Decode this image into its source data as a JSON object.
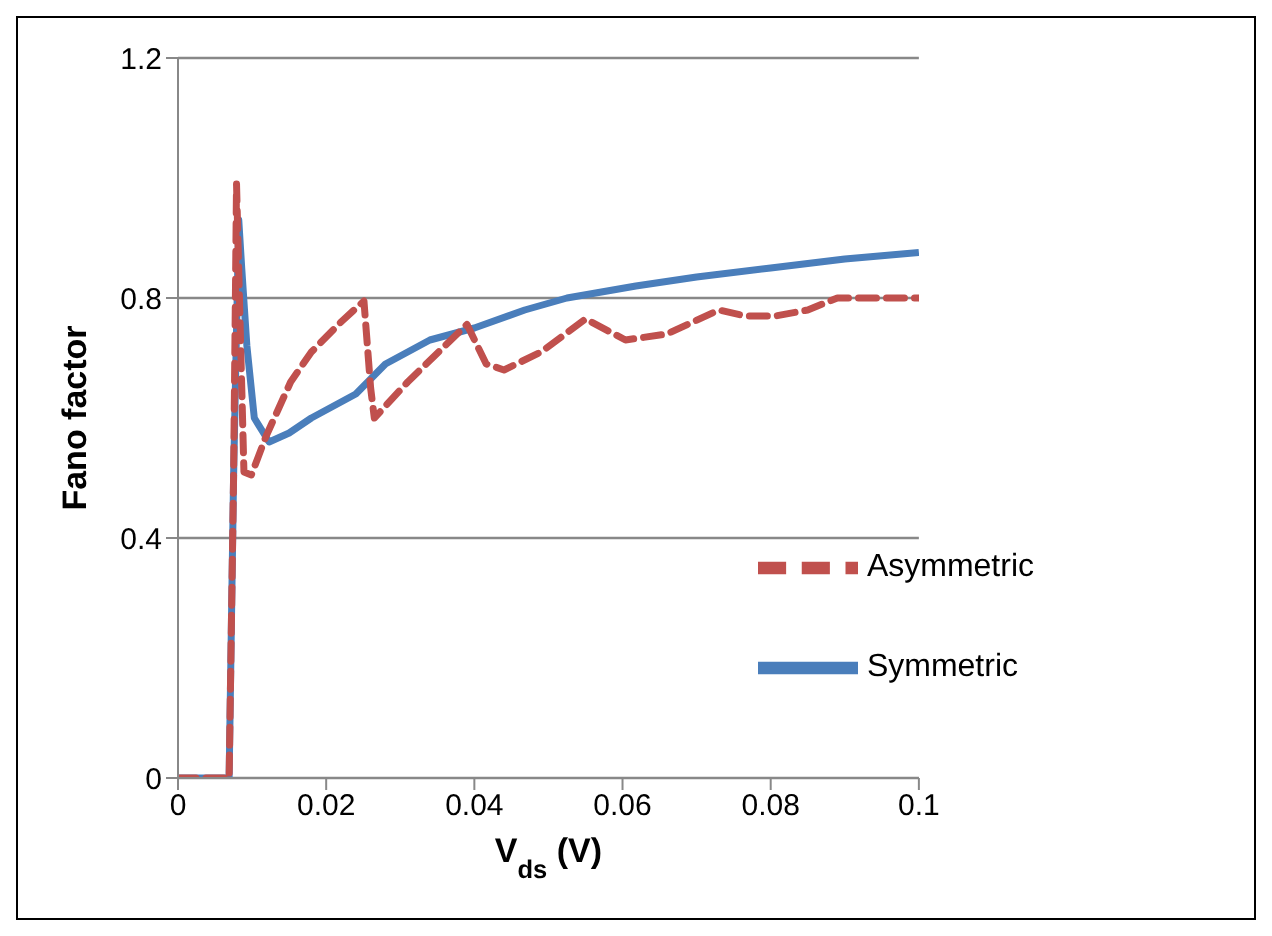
{
  "chart_data": {
    "type": "line",
    "xlabel": "V$_{ds}$ (V)",
    "ylabel": "Fano factor",
    "xlim": [
      0,
      0.1
    ],
    "xticks": [
      0,
      0.02,
      0.04,
      0.06,
      0.08,
      0.1
    ],
    "ylim": [
      0,
      1.2
    ],
    "yticks": [
      0,
      0.4,
      0.8,
      1.2
    ],
    "grid": "y",
    "legend": "right",
    "marker": "none",
    "series": [
      {
        "name": "Symmetric",
        "color": "#4a7ebb",
        "line_style": "solid",
        "x": [
          0,
          0.0069,
          0.0075,
          0.0082,
          0.0086,
          0.0093,
          0.0103,
          0.0123,
          0.015,
          0.018,
          0.024,
          0.028,
          0.034,
          0.04,
          0.0468,
          0.0525,
          0.0618,
          0.07,
          0.08,
          0.09,
          0.1
        ],
        "values": [
          0,
          0,
          0.5,
          0.93,
          0.85,
          0.72,
          0.6,
          0.56,
          0.575,
          0.6,
          0.64,
          0.69,
          0.73,
          0.75,
          0.78,
          0.8,
          0.82,
          0.835,
          0.85,
          0.865,
          0.876
        ]
      },
      {
        "name": "Asymmetric",
        "color": "#c0504d",
        "line_style": "dashed",
        "x": [
          0,
          0.0069,
          0.0075,
          0.0079,
          0.0085,
          0.0089,
          0.0099,
          0.0119,
          0.0152,
          0.018,
          0.022,
          0.0251,
          0.026,
          0.0265,
          0.031,
          0.036,
          0.039,
          0.0416,
          0.044,
          0.049,
          0.055,
          0.0604,
          0.066,
          0.073,
          0.0766,
          0.0806,
          0.085,
          0.089,
          0.0945,
          0.1
        ],
        "values": [
          0,
          0,
          0.5,
          0.99,
          0.7,
          0.51,
          0.505,
          0.57,
          0.66,
          0.71,
          0.76,
          0.795,
          0.65,
          0.6,
          0.66,
          0.72,
          0.756,
          0.69,
          0.68,
          0.71,
          0.765,
          0.73,
          0.74,
          0.78,
          0.77,
          0.77,
          0.78,
          0.8,
          0.8,
          0.8
        ]
      }
    ]
  }
}
